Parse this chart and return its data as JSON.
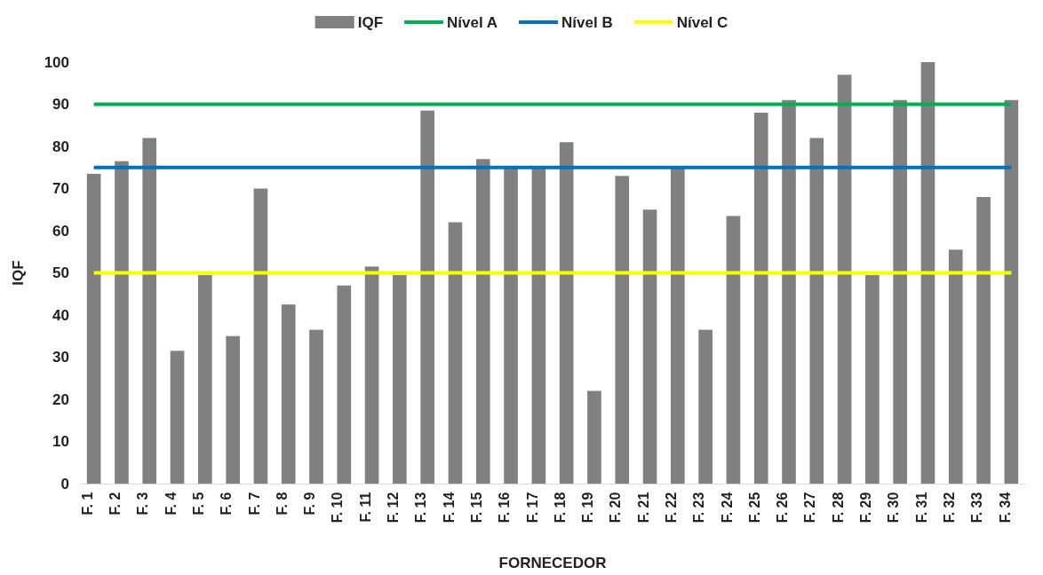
{
  "chart_data": {
    "type": "bar",
    "xlabel": "FORNECEDOR",
    "ylabel": "IQF",
    "categories": [
      "F. 1",
      "F. 2",
      "F. 3",
      "F. 4",
      "F. 5",
      "F. 6",
      "F. 7",
      "F. 8",
      "F. 9",
      "F. 10",
      "F. 11",
      "F. 12",
      "F. 13",
      "F. 14",
      "F. 15",
      "F. 16",
      "F. 17",
      "F. 18",
      "F. 19",
      "F. 20",
      "F. 21",
      "F. 22",
      "F. 23",
      "F. 24",
      "F. 25",
      "F. 26",
      "F. 27",
      "F. 28",
      "F. 29",
      "F. 30",
      "F. 31",
      "F. 32",
      "F. 33",
      "F. 34"
    ],
    "series": [
      {
        "name": "IQF",
        "color": "#808080",
        "values": [
          73.5,
          76.5,
          82,
          31.5,
          49.5,
          35,
          70,
          42.5,
          36.5,
          47,
          51.5,
          49.5,
          88.5,
          62,
          77,
          75,
          75,
          81,
          22,
          73,
          65,
          75,
          36.5,
          63.5,
          88,
          91,
          82,
          97,
          49.5,
          91,
          100,
          55.5,
          68,
          91
        ]
      },
      {
        "name": "Nível A",
        "type": "line",
        "color": "#00b050",
        "values": [
          90,
          90,
          90,
          90,
          90,
          90,
          90,
          90,
          90,
          90,
          90,
          90,
          90,
          90,
          90,
          90,
          90,
          90,
          90,
          90,
          90,
          90,
          90,
          90,
          90,
          90,
          90,
          90,
          90,
          90,
          90,
          90,
          90,
          90
        ]
      },
      {
        "name": "Nível B",
        "type": "line",
        "color": "#0070c0",
        "values": [
          75,
          75,
          75,
          75,
          75,
          75,
          75,
          75,
          75,
          75,
          75,
          75,
          75,
          75,
          75,
          75,
          75,
          75,
          75,
          75,
          75,
          75,
          75,
          75,
          75,
          75,
          75,
          75,
          75,
          75,
          75,
          75,
          75,
          75
        ]
      },
      {
        "name": "Nível C",
        "type": "line",
        "color": "#ffff00",
        "values": [
          50,
          50,
          50,
          50,
          50,
          50,
          50,
          50,
          50,
          50,
          50,
          50,
          50,
          50,
          50,
          50,
          50,
          50,
          50,
          50,
          50,
          50,
          50,
          50,
          50,
          50,
          50,
          50,
          50,
          50,
          50,
          50,
          50,
          50
        ]
      }
    ],
    "ylim": [
      0,
      100
    ],
    "yticks": [
      0,
      10,
      20,
      30,
      40,
      50,
      60,
      70,
      80,
      90,
      100
    ],
    "legend": "top",
    "marker": "none",
    "line_style": "solid"
  }
}
